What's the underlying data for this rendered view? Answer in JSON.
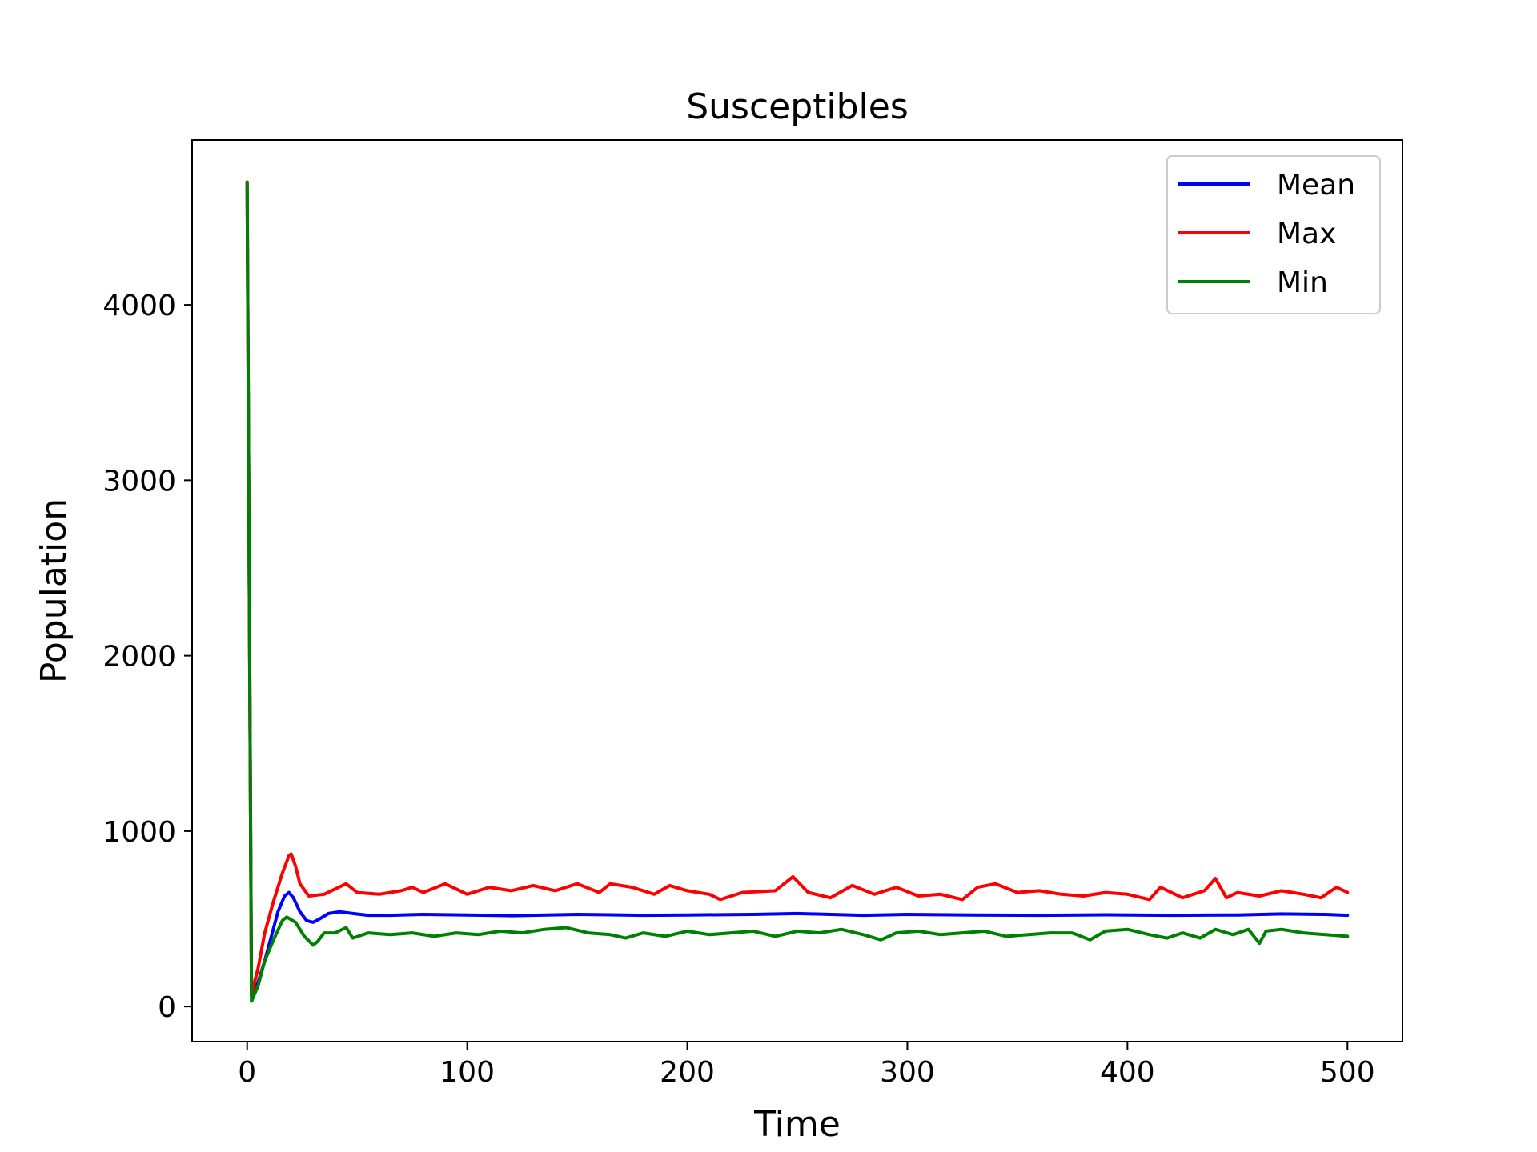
{
  "chart_data": {
    "type": "line",
    "title": "Susceptibles",
    "xlabel": "Time",
    "ylabel": "Population",
    "xlim": [
      -25,
      525
    ],
    "ylim": [
      -200,
      4940
    ],
    "xticks": [
      0,
      100,
      200,
      300,
      400,
      500
    ],
    "yticks": [
      0,
      1000,
      2000,
      3000,
      4000
    ],
    "grid": false,
    "legend_position": "top-right",
    "series": [
      {
        "name": "Mean",
        "color": "#0000ff",
        "x": [
          0,
          2,
          5,
          8,
          11,
          14,
          17,
          19,
          21,
          24,
          27,
          30,
          33,
          37,
          42,
          48,
          55,
          65,
          80,
          100,
          120,
          150,
          180,
          200,
          230,
          250,
          280,
          300,
          330,
          360,
          390,
          420,
          450,
          470,
          490,
          500
        ],
        "y": [
          4700,
          60,
          140,
          260,
          400,
          540,
          630,
          650,
          620,
          540,
          490,
          480,
          500,
          530,
          540,
          530,
          520,
          520,
          525,
          522,
          518,
          525,
          520,
          522,
          525,
          530,
          520,
          525,
          522,
          520,
          523,
          520,
          522,
          528,
          525,
          520
        ]
      },
      {
        "name": "Max",
        "color": "#ff0000",
        "x": [
          0,
          2,
          5,
          8,
          12,
          16,
          19,
          20,
          22,
          24,
          28,
          35,
          45,
          50,
          60,
          70,
          75,
          80,
          90,
          100,
          110,
          120,
          130,
          140,
          150,
          160,
          165,
          175,
          185,
          192,
          200,
          210,
          215,
          225,
          240,
          248,
          255,
          265,
          275,
          285,
          295,
          305,
          315,
          325,
          332,
          340,
          350,
          360,
          370,
          380,
          390,
          400,
          410,
          415,
          425,
          435,
          440,
          445,
          450,
          460,
          470,
          480,
          488,
          495,
          500
        ],
        "y": [
          4700,
          70,
          220,
          420,
          600,
          760,
          860,
          870,
          800,
          700,
          630,
          640,
          700,
          650,
          640,
          660,
          680,
          650,
          700,
          640,
          680,
          660,
          690,
          660,
          700,
          650,
          700,
          680,
          640,
          690,
          660,
          640,
          610,
          650,
          660,
          740,
          650,
          620,
          690,
          640,
          680,
          630,
          640,
          610,
          680,
          700,
          650,
          660,
          640,
          630,
          650,
          640,
          610,
          680,
          620,
          660,
          730,
          620,
          650,
          630,
          660,
          640,
          620,
          680,
          650
        ]
      },
      {
        "name": "Min",
        "color": "#008000",
        "x": [
          0,
          2,
          5,
          8,
          12,
          16,
          18,
          22,
          26,
          30,
          32,
          35,
          40,
          45,
          48,
          55,
          65,
          75,
          85,
          95,
          105,
          115,
          125,
          135,
          145,
          155,
          165,
          172,
          180,
          190,
          200,
          210,
          220,
          230,
          240,
          250,
          260,
          270,
          280,
          288,
          295,
          305,
          315,
          325,
          335,
          345,
          355,
          365,
          375,
          383,
          390,
          400,
          410,
          418,
          425,
          433,
          440,
          448,
          455,
          460,
          463,
          470,
          480,
          490,
          500
        ],
        "y": [
          4700,
          30,
          120,
          260,
          380,
          490,
          510,
          480,
          400,
          350,
          370,
          420,
          420,
          450,
          390,
          420,
          410,
          420,
          400,
          420,
          410,
          430,
          420,
          440,
          450,
          420,
          410,
          390,
          420,
          400,
          430,
          410,
          420,
          430,
          400,
          430,
          420,
          440,
          410,
          380,
          420,
          430,
          410,
          420,
          430,
          400,
          410,
          420,
          420,
          380,
          430,
          440,
          410,
          390,
          420,
          390,
          440,
          410,
          440,
          360,
          430,
          440,
          420,
          410,
          400
        ]
      }
    ]
  }
}
